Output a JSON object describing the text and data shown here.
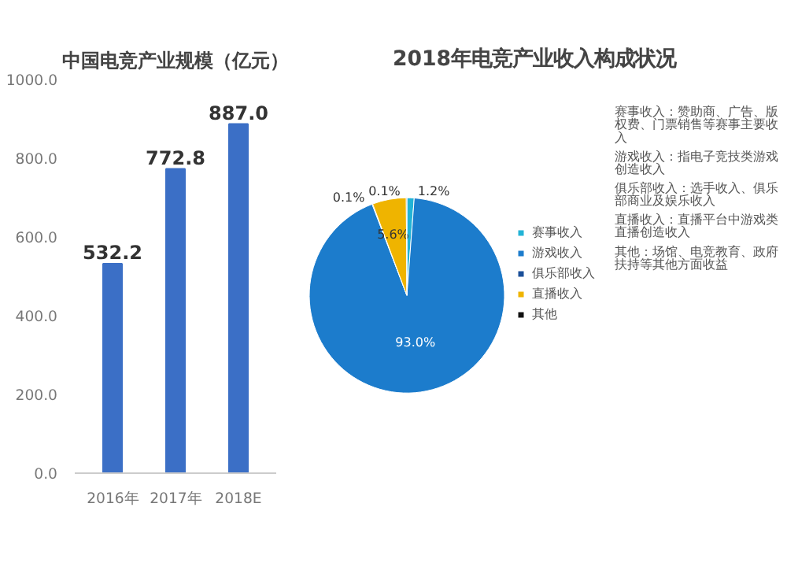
{
  "chart_data": [
    {
      "type": "bar",
      "title": "中国电竞产业规模（亿元）",
      "categories": [
        "2016年",
        "2017年",
        "2018E"
      ],
      "values": [
        532.2,
        772.8,
        887.0
      ],
      "color": "#3b6fc6",
      "ylim": [
        0,
        1000
      ],
      "yticks": [
        {
          "value": 0,
          "label": "0.0"
        },
        {
          "value": 200,
          "label": "200.0"
        },
        {
          "value": 400,
          "label": "400.0"
        },
        {
          "value": 600,
          "label": "600.0"
        },
        {
          "value": 800,
          "label": "800.0"
        },
        {
          "value": 1000,
          "label": "1000.0"
        }
      ],
      "value_labels": [
        "532.2",
        "772.8",
        "887.0"
      ],
      "grid": false
    },
    {
      "type": "pie",
      "title": "2018年电竞产业收入构成状况",
      "categories": [
        "赛事收入",
        "游戏收入",
        "俱乐部收入",
        "直播收入",
        "其他"
      ],
      "values": [
        1.2,
        93.0,
        0.1,
        5.6,
        0.1
      ],
      "colors": [
        "#22b3d6",
        "#1c7ccc",
        "#1b4f99",
        "#efb400",
        "#111111"
      ],
      "value_labels": [
        "1.2%",
        "93.0%",
        "0.1%",
        "5.6%",
        "0.1%"
      ],
      "legend": "right",
      "annotations": [
        "赛事收入：赞助商、广告、版权费、门票销售等赛事主要收入",
        "游戏收入：指电子竞技类游戏创造收入",
        "俱乐部收入：选手收入、俱乐部商业及娱乐收入",
        "直播收入：直播平台中游戏类直播创造收入",
        "其他：场馆、电竞教育、政府扶持等其他方面收益"
      ]
    }
  ]
}
